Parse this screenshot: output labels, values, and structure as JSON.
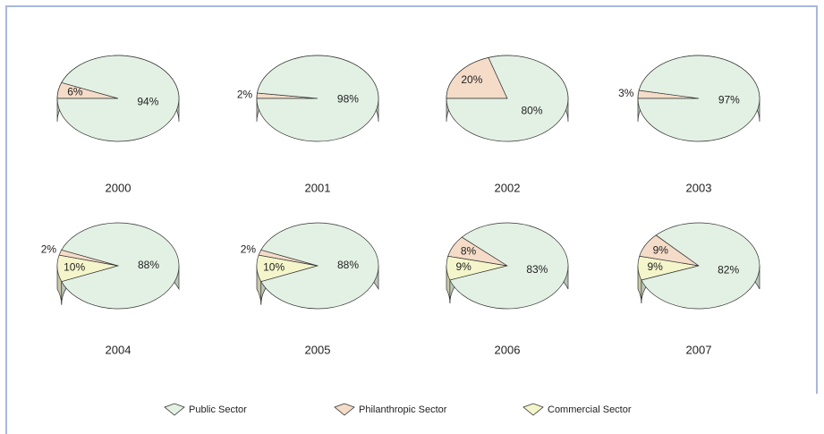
{
  "chart_data": [
    {
      "type": "pie",
      "title": "2000",
      "categories": [
        "Public Sector",
        "Philanthropic Sector"
      ],
      "values": [
        94,
        6
      ],
      "value_labels": [
        "94%",
        "6%"
      ],
      "colors": [
        "#e3f1e4",
        "#f5dcc8"
      ]
    },
    {
      "type": "pie",
      "title": "2001",
      "categories": [
        "Public Sector",
        "Philanthropic Sector"
      ],
      "values": [
        98,
        2
      ],
      "value_labels": [
        "98%",
        "2%"
      ],
      "colors": [
        "#e3f1e4",
        "#f5dcc8"
      ]
    },
    {
      "type": "pie",
      "title": "2002",
      "categories": [
        "Public Sector",
        "Philanthropic Sector"
      ],
      "values": [
        80,
        20
      ],
      "value_labels": [
        "80%",
        "20%"
      ],
      "colors": [
        "#e3f1e4",
        "#f5dcc8"
      ]
    },
    {
      "type": "pie",
      "title": "2003",
      "categories": [
        "Public Sector",
        "Philanthropic Sector"
      ],
      "values": [
        97,
        3
      ],
      "value_labels": [
        "97%",
        "3%"
      ],
      "colors": [
        "#e3f1e4",
        "#f5dcc8"
      ]
    },
    {
      "type": "pie",
      "title": "2004",
      "categories": [
        "Public Sector",
        "Philanthropic Sector",
        "Commercial Sector"
      ],
      "values": [
        88,
        2,
        10
      ],
      "value_labels": [
        "88%",
        "2%",
        "10%"
      ],
      "colors": [
        "#e3f1e4",
        "#f5dcc8",
        "#f5f5cc"
      ]
    },
    {
      "type": "pie",
      "title": "2005",
      "categories": [
        "Public Sector",
        "Philanthropic Sector",
        "Commercial Sector"
      ],
      "values": [
        88,
        2,
        10
      ],
      "value_labels": [
        "88%",
        "2%",
        "10%"
      ],
      "colors": [
        "#e3f1e4",
        "#f5dcc8",
        "#f5f5cc"
      ]
    },
    {
      "type": "pie",
      "title": "2006",
      "categories": [
        "Public Sector",
        "Philanthropic Sector",
        "Commercial Sector"
      ],
      "values": [
        83,
        8,
        9
      ],
      "value_labels": [
        "83%",
        "8%",
        "9%"
      ],
      "colors": [
        "#e3f1e4",
        "#f5dcc8",
        "#f5f5cc"
      ]
    },
    {
      "type": "pie",
      "title": "2007",
      "categories": [
        "Public Sector",
        "Philanthropic Sector",
        "Commercial Sector"
      ],
      "values": [
        82,
        9,
        9
      ],
      "value_labels": [
        "82%",
        "9%",
        "9%"
      ],
      "colors": [
        "#e3f1e4",
        "#f5dcc8",
        "#f5f5cc"
      ]
    }
  ],
  "legend": {
    "entries": [
      {
        "name": "Public Sector",
        "color": "#e3f1e4"
      },
      {
        "name": "Philanthropic Sector",
        "color": "#f5dcc8"
      },
      {
        "name": "Commercial Sector",
        "color": "#f5f5cc"
      }
    ]
  }
}
